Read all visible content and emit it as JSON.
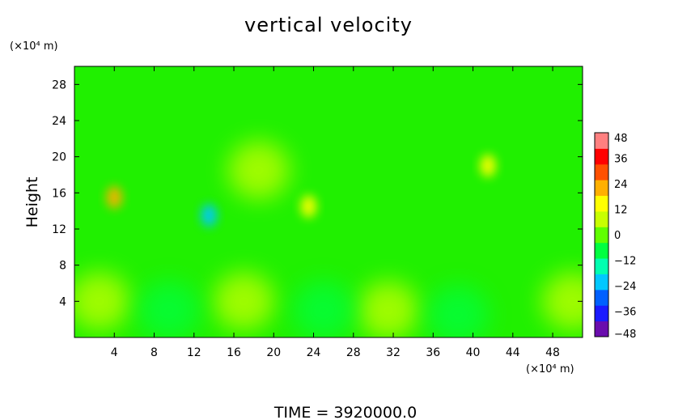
{
  "chart_data": {
    "type": "heatmap",
    "title": "vertical velocity",
    "ylabel": "Height",
    "y_unit": "(×10⁴ m)",
    "x_unit": "(×10⁴ m)",
    "xlim": [
      0,
      51
    ],
    "ylim": [
      0,
      30
    ],
    "x_ticks": [
      4,
      8,
      12,
      16,
      20,
      24,
      28,
      32,
      36,
      40,
      44,
      48
    ],
    "y_ticks": [
      4,
      8,
      12,
      16,
      20,
      24,
      28
    ],
    "colorbar": {
      "ticks": [
        48,
        36,
        24,
        12,
        0,
        -12,
        -24,
        -36,
        -48
      ],
      "range": [
        -48,
        48
      ],
      "colors": [
        "#6a0dad",
        "#1a1aff",
        "#0060ff",
        "#00c8ff",
        "#00ffb0",
        "#00ff40",
        "#60ff00",
        "#c8ff00",
        "#ffff00",
        "#ffb000",
        "#ff5000",
        "#ff0000",
        "#ff8080"
      ]
    },
    "features": [
      {
        "x": 4,
        "y": 15.5,
        "value": 24
      },
      {
        "x": 13.5,
        "y": 13.5,
        "value": -20
      },
      {
        "x": 23.5,
        "y": 14.5,
        "value": 12
      },
      {
        "x": 2.5,
        "y": 4,
        "value": 6
      },
      {
        "x": 17,
        "y": 4,
        "value": 6
      },
      {
        "x": 31.5,
        "y": 3,
        "value": 8
      },
      {
        "x": 50,
        "y": 4,
        "value": 10
      },
      {
        "x": 9.5,
        "y": 3,
        "value": -8
      },
      {
        "x": 25,
        "y": 3,
        "value": -6
      },
      {
        "x": 38.5,
        "y": 2.5,
        "value": -10
      },
      {
        "x": 41.5,
        "y": 19,
        "value": 12
      },
      {
        "x": 18.5,
        "y": 18.5,
        "value": 10
      }
    ]
  },
  "footer": {
    "time_label": "TIME  =  3920000.0"
  }
}
